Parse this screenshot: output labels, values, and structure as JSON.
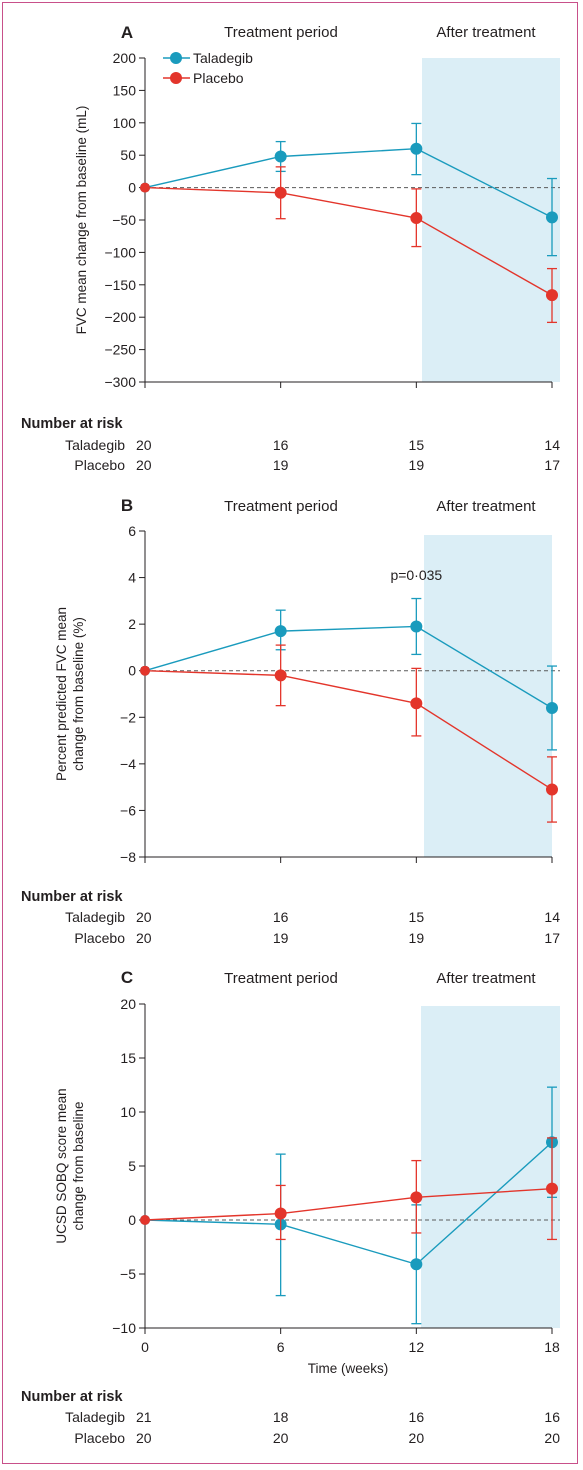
{
  "colors": {
    "taladegib": "#1a9bbd",
    "placebo": "#e3352b",
    "shade": "#dbeef6",
    "axis": "#231f20"
  },
  "legend": [
    {
      "name": "Taladegib",
      "color": "#1a9bbd"
    },
    {
      "name": "Placebo",
      "color": "#e3352b"
    }
  ],
  "chart_data": [
    {
      "panel": "A",
      "type": "line",
      "period_labels": [
        "Treatment period",
        "After treatment"
      ],
      "ylabel": "FVC mean change from baseline (mL)",
      "xlabel": "",
      "ylim": [
        -300,
        200
      ],
      "yticks": [
        200,
        150,
        100,
        50,
        0,
        -50,
        -100,
        -150,
        -200,
        -250,
        -300
      ],
      "xlim": [
        0,
        18
      ],
      "x": [
        0,
        6,
        12,
        18
      ],
      "shaded_x_range": [
        12,
        18
      ],
      "reference_line": 0,
      "series": [
        {
          "name": "Taladegib",
          "values": [
            0,
            48,
            60,
            -46
          ],
          "err_low": [
            0,
            25,
            20,
            -105
          ],
          "err_high": [
            0,
            71,
            99,
            14
          ]
        },
        {
          "name": "Placebo",
          "values": [
            0,
            -8,
            -47,
            -166
          ],
          "err_low": [
            0,
            -48,
            -91,
            -208
          ],
          "err_high": [
            0,
            32,
            -2,
            -125
          ]
        }
      ],
      "annotations": [],
      "risk_title": "Number at risk",
      "risk": [
        {
          "label": "Taladegib",
          "values": [
            "20",
            "16",
            "15",
            "14"
          ]
        },
        {
          "label": "Placebo",
          "values": [
            "20",
            "19",
            "19",
            "17"
          ]
        }
      ]
    },
    {
      "panel": "B",
      "type": "line",
      "period_labels": [
        "Treatment period",
        "After treatment"
      ],
      "ylabel": "Percent predicted FVC mean change from baseline (%)",
      "xlabel": "",
      "ylim": [
        -8,
        6
      ],
      "yticks": [
        6,
        4,
        2,
        0,
        -2,
        -4,
        -6,
        -8
      ],
      "xlim": [
        0,
        18
      ],
      "x": [
        0,
        6,
        12,
        18
      ],
      "shaded_x_range": [
        12,
        18
      ],
      "reference_line": 0,
      "series": [
        {
          "name": "Taladegib",
          "values": [
            0,
            1.7,
            1.9,
            -1.6
          ],
          "err_low": [
            0,
            0.9,
            0.7,
            -3.4
          ],
          "err_high": [
            0,
            2.6,
            3.1,
            0.2
          ]
        },
        {
          "name": "Placebo",
          "values": [
            0,
            -0.2,
            -1.4,
            -5.1
          ],
          "err_low": [
            0,
            -1.5,
            -2.8,
            -6.5
          ],
          "err_high": [
            0,
            1.1,
            0.1,
            -3.7
          ]
        }
      ],
      "annotations": [
        {
          "text": "p=0·035",
          "x": 12,
          "y": 3.9
        }
      ],
      "risk_title": "Number at risk",
      "risk": [
        {
          "label": "Taladegib",
          "values": [
            "20",
            "16",
            "15",
            "14"
          ]
        },
        {
          "label": "Placebo",
          "values": [
            "20",
            "19",
            "19",
            "17"
          ]
        }
      ]
    },
    {
      "panel": "C",
      "type": "line",
      "period_labels": [
        "Treatment period",
        "After treatment"
      ],
      "ylabel": "UCSD SOBQ score mean change from baseline",
      "xlabel": "Time (weeks)",
      "ylim": [
        -10,
        20
      ],
      "yticks": [
        20,
        15,
        10,
        5,
        0,
        -5,
        -10
      ],
      "xlim": [
        0,
        18
      ],
      "xticks": [
        "0",
        "6",
        "12",
        "18"
      ],
      "x": [
        0,
        6,
        12,
        18
      ],
      "shaded_x_range": [
        12,
        18
      ],
      "reference_line": 0,
      "series": [
        {
          "name": "Taladegib",
          "values": [
            0,
            -0.4,
            -4.1,
            7.2
          ],
          "err_low": [
            0,
            -7.0,
            -9.6,
            2.1
          ],
          "err_high": [
            0,
            6.1,
            1.4,
            12.3
          ]
        },
        {
          "name": "Placebo",
          "values": [
            0,
            0.6,
            2.1,
            2.9
          ],
          "err_low": [
            0,
            -1.8,
            -1.2,
            -1.8
          ],
          "err_high": [
            0,
            3.2,
            5.5,
            7.6
          ]
        }
      ],
      "annotations": [],
      "risk_title": "Number at risk",
      "risk": [
        {
          "label": "Taladegib",
          "values": [
            "21",
            "18",
            "16",
            "16"
          ]
        },
        {
          "label": "Placebo",
          "values": [
            "20",
            "20",
            "20",
            "20"
          ]
        }
      ]
    }
  ]
}
